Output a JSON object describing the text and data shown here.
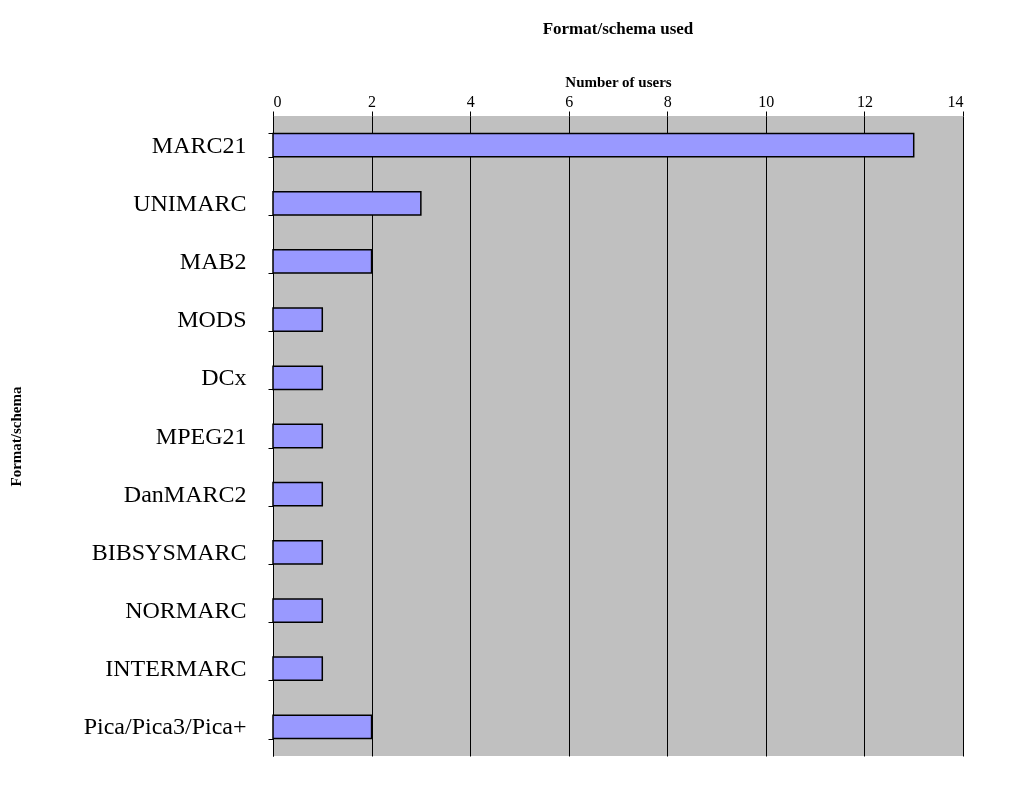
{
  "chart_data": {
    "type": "bar",
    "orientation": "horizontal",
    "title": "Format/schema used",
    "xlabel": "Number of users",
    "ylabel": "Format/schema",
    "categories": [
      "MARC21",
      "UNIMARC",
      "MAB2",
      "MODS",
      "DCx",
      "MPEG21",
      "DanMARC2",
      "BIBSYSMARC",
      "NORMARC",
      "INTERMARC",
      "Pica/Pica3/Pica+"
    ],
    "values": [
      13,
      3,
      2,
      1,
      1,
      1,
      1,
      1,
      1,
      1,
      2
    ],
    "color": "#9999ff",
    "xlim": [
      0,
      14
    ],
    "xticks": [
      0,
      2,
      4,
      6,
      8,
      10,
      12,
      14
    ],
    "grid": "x"
  }
}
